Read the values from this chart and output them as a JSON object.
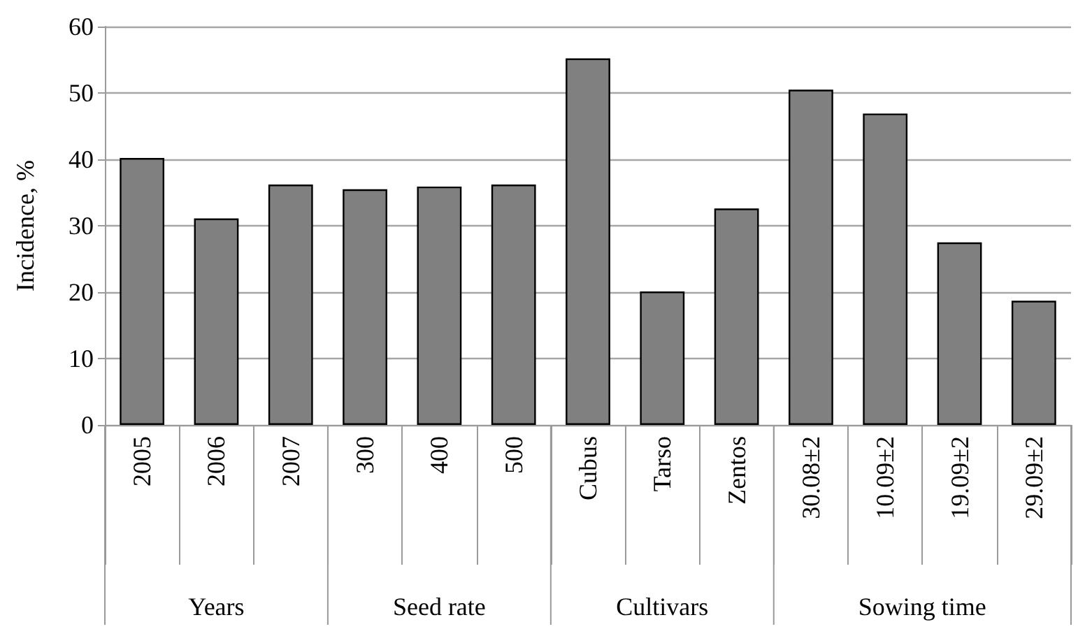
{
  "chart_data": {
    "type": "bar",
    "ylabel": "Incidence, %",
    "categories": [
      "2005",
      "2006",
      "2007",
      "300",
      "400",
      "500",
      "Cubus",
      "Tarso",
      "Zentos",
      "30.08±2",
      "10.09±2",
      "19.09±2",
      "29.09±2"
    ],
    "values": [
      40.2,
      31.1,
      36.2,
      35.5,
      35.9,
      36.2,
      55.2,
      20.1,
      32.6,
      50.5,
      46.9,
      27.5,
      18.7
    ],
    "color": "#808080",
    "ylim": [
      0,
      60
    ],
    "yticks": [
      0,
      10,
      20,
      30,
      40,
      50,
      60
    ],
    "grid": "y",
    "annotations": [
      "Years",
      "Seed rate",
      "Cultivars",
      "Sowing time"
    ]
  }
}
